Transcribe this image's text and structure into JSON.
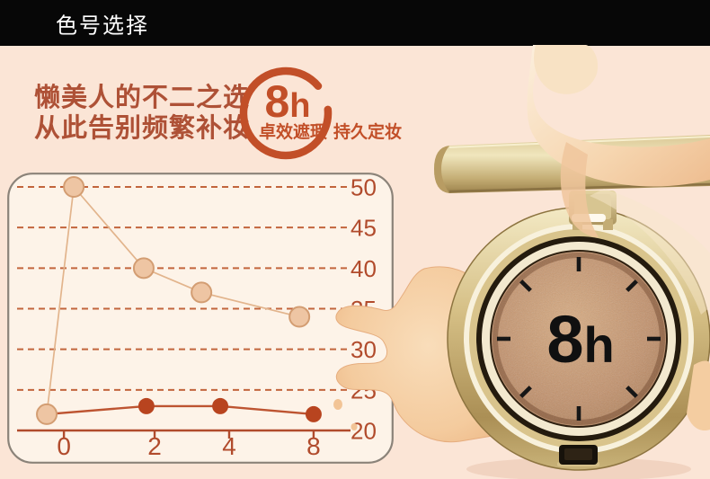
{
  "header": {
    "title": "色号选择"
  },
  "hero": {
    "headline_line1": "懒美人的不二之选",
    "headline_line2": "从此告别频繁补妆",
    "badge_number": "8",
    "badge_unit": "h",
    "sub_left": "卓效遮瑕",
    "sub_right": "持久定妆"
  },
  "product": {
    "dial_number": "8",
    "dial_unit": "h"
  },
  "colors": {
    "page_bg": "#fbe5d6",
    "header_bg": "#070707",
    "headline": "#ae5136",
    "accent": "#c24f28",
    "axis": "#b14b2c",
    "grid": "#c2653c",
    "panel_bg": "#fdf3e8",
    "panel_border": "#8b8379",
    "light_series": "#eec5a3",
    "dark_series": "#b8441f",
    "gold": "#d5bf85"
  },
  "chart_data": {
    "type": "line",
    "title": "",
    "legend": "none",
    "grid": "horizontal-dashed",
    "x_axis": {
      "tick_labels": [
        "0",
        "2",
        "4",
        "8"
      ],
      "unit": "hours",
      "tick_fx": [
        0.142,
        0.417,
        0.643,
        0.899
      ]
    },
    "y_axis": {
      "ticks": [
        20,
        25,
        30,
        35,
        40,
        45,
        50
      ],
      "lim": [
        20,
        50
      ]
    },
    "series": [
      {
        "name": "light_line",
        "line_color": "#e2b48c",
        "line_width": 1.7,
        "marker_fill": "#eec5a3",
        "marker_stroke": "#d39d72",
        "marker_stroke_width": 2,
        "marker_radius": 11,
        "points": [
          {
            "h": -0.4,
            "v": 22
          },
          {
            "h": 0.2,
            "v": 50
          },
          {
            "h": 1.8,
            "v": 40
          },
          {
            "h": 3.3,
            "v": 37
          },
          {
            "h": 7.3,
            "v": 34
          }
        ],
        "fx": [
          0.09,
          0.172,
          0.384,
          0.559,
          0.856
        ]
      },
      {
        "name": "dark_line",
        "line_color": "#bd5431",
        "line_width": 2.4,
        "marker_fill": "#b8441f",
        "marker_stroke": "none",
        "marker_stroke_width": 0,
        "marker_radius": 9,
        "points": [
          {
            "h": -0.4,
            "v": 22,
            "shared_light_marker": true
          },
          {
            "h": 1.8,
            "v": 23
          },
          {
            "h": 3.8,
            "v": 23
          },
          {
            "h": 8,
            "v": 22
          }
        ],
        "fx": [
          0.09,
          0.392,
          0.616,
          0.899
        ]
      }
    ]
  }
}
